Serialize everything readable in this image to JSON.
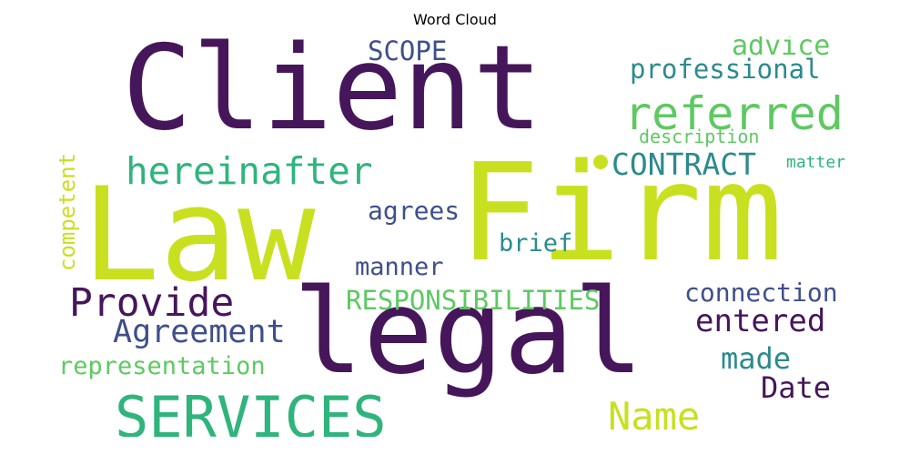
{
  "title": "Word Cloud",
  "colors": {
    "background": "#ffffff",
    "dark_purple": "#46165a",
    "indigo": "#3f4f8a",
    "teal": "#2b8b8c",
    "green": "#2fb47c",
    "light_green": "#5ec962",
    "yellow": "#c8e020"
  },
  "words": [
    {
      "text": "Client",
      "weight": 1.0
    },
    {
      "text": "Law",
      "weight": 0.98
    },
    {
      "text": "Firm",
      "weight": 0.98
    },
    {
      "text": "legal",
      "weight": 0.9
    },
    {
      "text": "SERVICES",
      "weight": 0.5
    },
    {
      "text": "referred",
      "weight": 0.45
    },
    {
      "text": "hereinafter",
      "weight": 0.4
    },
    {
      "text": "Provide",
      "weight": 0.42
    },
    {
      "text": "Name",
      "weight": 0.4
    },
    {
      "text": "Agreement",
      "weight": 0.36
    },
    {
      "text": "CONTRACT",
      "weight": 0.33
    },
    {
      "text": "entered",
      "weight": 0.33
    },
    {
      "text": "professional",
      "weight": 0.3
    },
    {
      "text": "advice",
      "weight": 0.3
    },
    {
      "text": "made",
      "weight": 0.32
    },
    {
      "text": "Date",
      "weight": 0.32
    },
    {
      "text": "RESPONSIBILITIES",
      "weight": 0.3
    },
    {
      "text": "connection",
      "weight": 0.29
    },
    {
      "text": "SCOPE",
      "weight": 0.29
    },
    {
      "text": "agrees",
      "weight": 0.28
    },
    {
      "text": "manner",
      "weight": 0.27
    },
    {
      "text": "brief",
      "weight": 0.27
    },
    {
      "text": "representation",
      "weight": 0.27
    },
    {
      "text": "competent",
      "weight": 0.24
    },
    {
      "text": "description",
      "weight": 0.2
    },
    {
      "text": "matter",
      "weight": 0.18
    }
  ]
}
